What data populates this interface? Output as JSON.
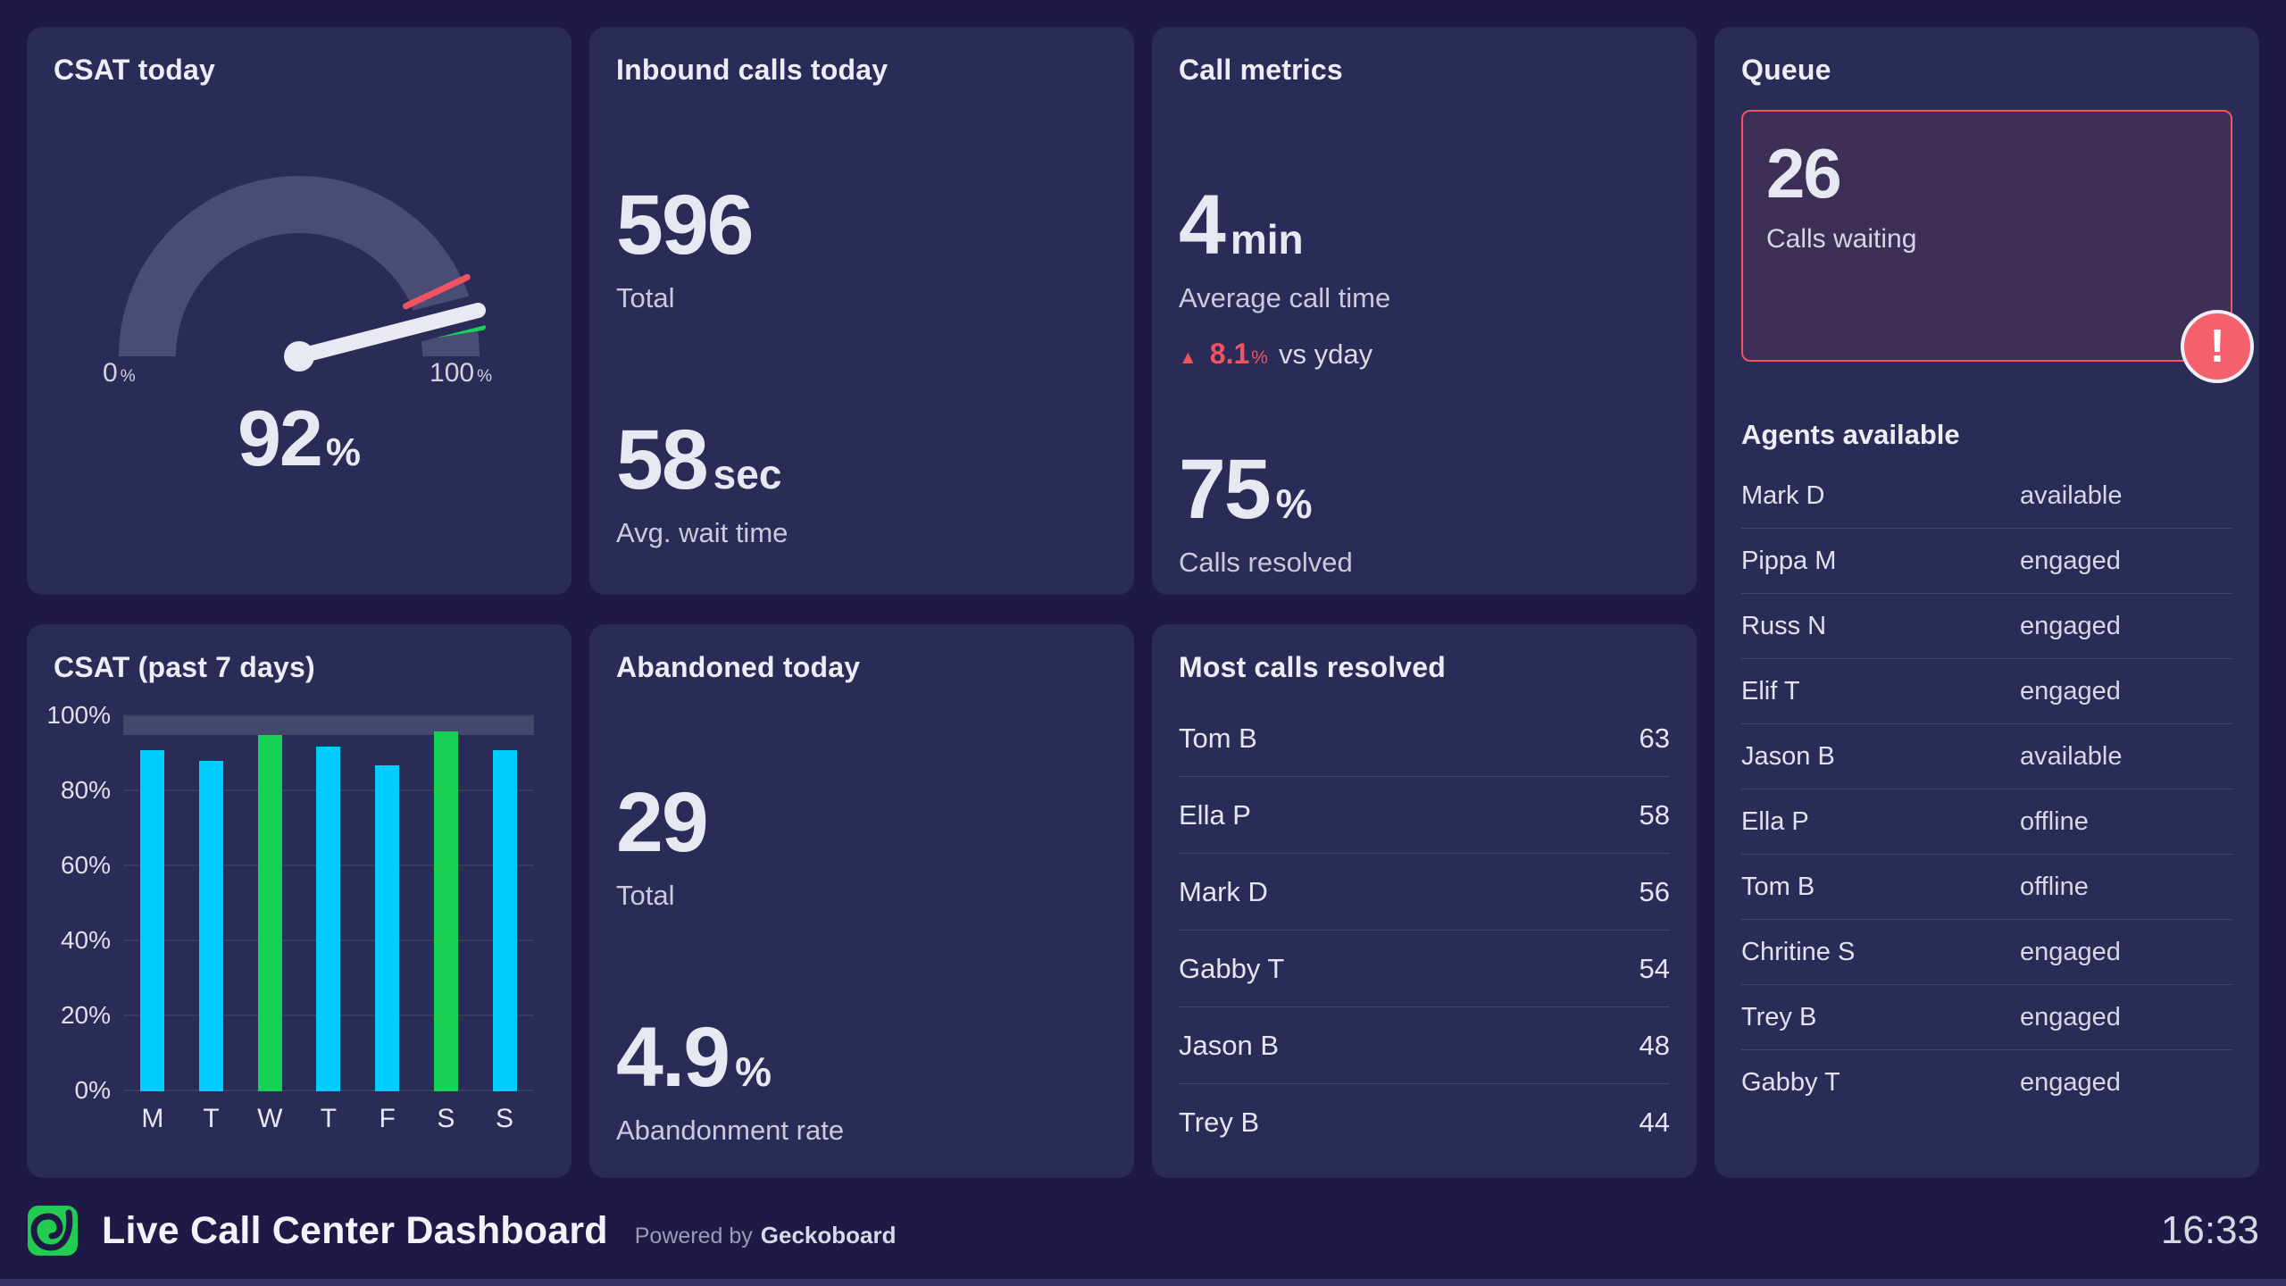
{
  "colors": {
    "page_bg": "#1e1945",
    "card_bg": "#2a2b56",
    "cyan": "#00ccff",
    "green": "#16d155",
    "red": "#f2545f",
    "gauge_track": "#4b4c75",
    "band": "#45476d"
  },
  "cards": {
    "csat_today": {
      "title": "CSAT today"
    },
    "inbound": {
      "title": "Inbound calls today",
      "total": {
        "value": "596",
        "label": "Total"
      },
      "wait": {
        "value": "58",
        "unit": "sec",
        "label": "Avg. wait time"
      }
    },
    "call_metrics": {
      "title": "Call metrics",
      "avg": {
        "value": "4",
        "unit": "min",
        "label": "Average call time"
      },
      "delta": {
        "arrow": "▲",
        "value": "8.1",
        "unit": "%",
        "text": "vs yday"
      },
      "resolved": {
        "value": "75",
        "unit": "%",
        "label": "Calls resolved"
      }
    },
    "queue": {
      "title": "Queue",
      "waiting": {
        "value": "26",
        "label": "Calls waiting"
      },
      "alert_glyph": "!",
      "agents_title": "Agents available",
      "agents": [
        [
          "Mark D",
          "available"
        ],
        [
          "Pippa M",
          "engaged"
        ],
        [
          "Russ N",
          "engaged"
        ],
        [
          "Elif T",
          "engaged"
        ],
        [
          "Jason B",
          "available"
        ],
        [
          "Ella P",
          "offline"
        ],
        [
          "Tom B",
          "offline"
        ],
        [
          "Chritine S",
          "engaged"
        ],
        [
          "Trey B",
          "engaged"
        ],
        [
          "Gabby T",
          "engaged"
        ]
      ]
    },
    "csat_week": {
      "title": "CSAT (past 7 days)"
    },
    "abandoned": {
      "title": "Abandoned today",
      "total": {
        "value": "29",
        "label": "Total"
      },
      "rate": {
        "value": "4.9",
        "unit": "%",
        "label": "Abandonment rate"
      }
    },
    "most_resolved": {
      "title": "Most calls resolved",
      "rows": [
        [
          "Tom B",
          "63"
        ],
        [
          "Ella P",
          "58"
        ],
        [
          "Mark D",
          "56"
        ],
        [
          "Gabby T",
          "54"
        ],
        [
          "Jason B",
          "48"
        ],
        [
          "Trey B",
          "44"
        ]
      ]
    }
  },
  "chart_data": [
    {
      "type": "gauge",
      "title": "CSAT today",
      "value": 92,
      "value_label": "92",
      "min": 0,
      "max": 100,
      "unit": "%",
      "min_label": "0",
      "max_label": "100",
      "track_color": "#4b4c75",
      "needle_color": "#e8e9f2",
      "thresholds": [
        {
          "pct": 86,
          "color": "#f2545f"
        },
        {
          "pct": 95,
          "color": "#16d155"
        }
      ]
    },
    {
      "type": "bar",
      "title": "CSAT (past 7 days)",
      "categories": [
        "M",
        "T",
        "W",
        "T",
        "F",
        "S",
        "S"
      ],
      "values": [
        91,
        88,
        95,
        92,
        87,
        96,
        91
      ],
      "unit": "%",
      "ylim": [
        0,
        100
      ],
      "yticks": [
        0,
        20,
        40,
        60,
        80,
        100
      ],
      "ytick_suffix": "%",
      "goal_band": [
        95,
        100
      ],
      "bar_color": "#00ccff",
      "goal_color": "#16d155",
      "band_color": "#45476d",
      "grid": true,
      "legend": false
    }
  ],
  "footer": {
    "title": "Live Call Center Dashboard",
    "powered_prefix": "Powered by",
    "powered_brand": "Geckoboard",
    "time": "16:33"
  }
}
